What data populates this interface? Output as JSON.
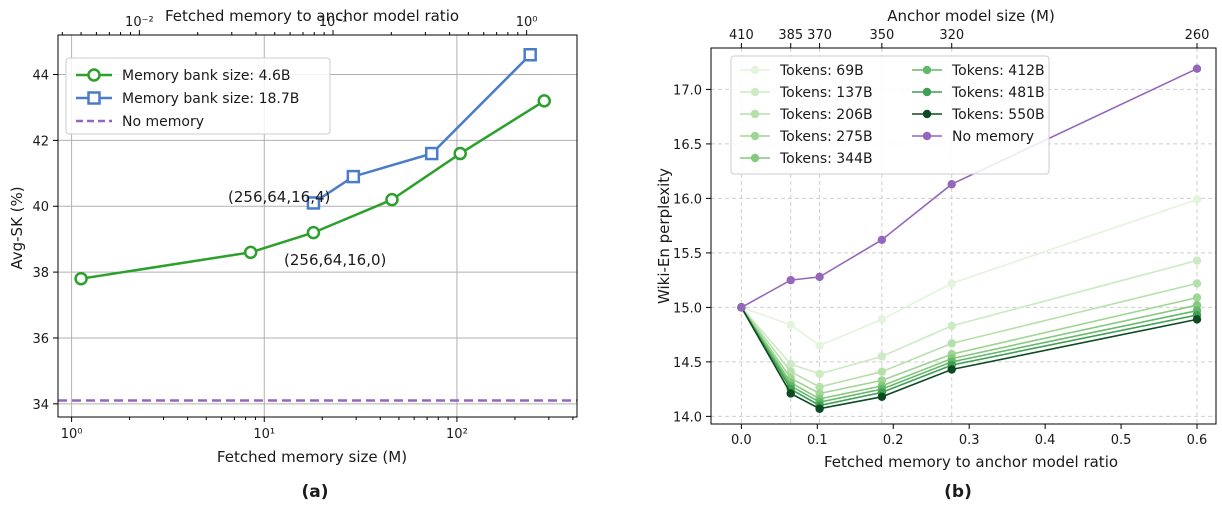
{
  "chart_data": [
    {
      "type": "line",
      "panel_label": "(a)",
      "xlabel": "Fetched memory size (M)",
      "ylabel": "Avg-SK (%)",
      "x_top_label": "Fetched memory to anchor model ratio",
      "xscale": "log",
      "x_top_scale": "log",
      "xlim": [
        0.85,
        420
      ],
      "x_top_lim": [
        0.0038,
        1.82
      ],
      "ylim": [
        33.6,
        45.2
      ],
      "x_ticks": [
        1,
        10,
        100
      ],
      "x_tick_labels": [
        "10⁰",
        "10¹",
        "10²"
      ],
      "x_top_ticks": [
        0.01,
        0.1,
        1
      ],
      "x_top_tick_labels": [
        "10⁻²",
        "10⁻¹",
        "10⁰"
      ],
      "y_ticks": [
        34,
        36,
        38,
        40,
        42,
        44
      ],
      "y_tick_labels": [
        "34",
        "36",
        "38",
        "40",
        "42",
        "44"
      ],
      "grid": true,
      "legend_position": "top-left",
      "series": [
        {
          "name": "Memory bank size: 4.6B",
          "color": "#2ca02c",
          "marker": "circle",
          "x": [
            1.12,
            8.5,
            18,
            46,
            104,
            284
          ],
          "y": [
            37.8,
            38.6,
            39.2,
            40.2,
            41.6,
            43.2
          ]
        },
        {
          "name": "Memory bank size: 18.7B",
          "color": "#4a7cc9",
          "marker": "square",
          "x": [
            18,
            29,
            74,
            240
          ],
          "y": [
            40.1,
            40.9,
            41.6,
            44.6
          ]
        },
        {
          "name": "No memory",
          "color": "#9467bd",
          "style": "dashed",
          "y": 34.1
        }
      ],
      "annotations": [
        {
          "text": "(256,64,16,4)",
          "color": "#4a7cc9"
        },
        {
          "text": "(256,64,16,0)",
          "color": "#2ca02c"
        }
      ]
    },
    {
      "type": "line",
      "panel_label": "(b)",
      "xlabel": "Fetched memory to anchor model ratio",
      "ylabel": "Wiki-En perplexity",
      "x_top_label": "Anchor model size (M)",
      "xlim": [
        -0.04,
        0.625
      ],
      "ylim": [
        13.93,
        17.38
      ],
      "x_ticks": [
        0.0,
        0.1,
        0.2,
        0.3,
        0.4,
        0.5,
        0.6
      ],
      "x_tick_labels": [
        "0.0",
        "0.1",
        "0.2",
        "0.3",
        "0.4",
        "0.5",
        "0.6"
      ],
      "x_top_ticks": [
        0.0,
        0.065,
        0.103,
        0.185,
        0.277,
        0.6
      ],
      "x_top_tick_labels": [
        "410",
        "385",
        "370",
        "350",
        "320",
        "260"
      ],
      "y_ticks": [
        14.0,
        14.5,
        15.0,
        15.5,
        16.0,
        16.5,
        17.0
      ],
      "y_tick_labels": [
        "14.0",
        "14.5",
        "15.0",
        "15.5",
        "16.0",
        "16.5",
        "17.0"
      ],
      "grid": "dashed",
      "legend_position": "top-left",
      "x": [
        0.0,
        0.065,
        0.103,
        0.185,
        0.277,
        0.6
      ],
      "series": [
        {
          "name": "Tokens:  69B",
          "color": "#e3f3de",
          "values": [
            15.0,
            14.84,
            14.65,
            14.89,
            15.22,
            15.99
          ]
        },
        {
          "name": "Tokens: 137B",
          "color": "#cdeac4",
          "values": [
            15.0,
            14.48,
            14.39,
            14.55,
            14.83,
            15.43
          ]
        },
        {
          "name": "Tokens: 206B",
          "color": "#b6e0ab",
          "values": [
            15.0,
            14.41,
            14.27,
            14.41,
            14.67,
            15.22
          ]
        },
        {
          "name": "Tokens: 275B",
          "color": "#9fd694",
          "values": [
            15.0,
            14.35,
            14.21,
            14.33,
            14.57,
            15.09
          ]
        },
        {
          "name": "Tokens: 344B",
          "color": "#84c97d",
          "values": [
            15.0,
            14.31,
            14.16,
            14.28,
            14.53,
            15.02
          ]
        },
        {
          "name": "Tokens: 412B",
          "color": "#63b86a",
          "values": [
            15.0,
            14.28,
            14.13,
            14.25,
            14.5,
            14.97
          ]
        },
        {
          "name": "Tokens: 481B",
          "color": "#3f9f52",
          "values": [
            15.0,
            14.25,
            14.1,
            14.22,
            14.47,
            14.93
          ]
        },
        {
          "name": "Tokens: 550B",
          "color": "#0c4b22",
          "values": [
            15.0,
            14.21,
            14.07,
            14.18,
            14.43,
            14.89
          ]
        },
        {
          "name": "No memory",
          "color": "#9467bd",
          "values": [
            15.0,
            15.25,
            15.28,
            15.62,
            16.13,
            17.19
          ]
        }
      ]
    }
  ]
}
